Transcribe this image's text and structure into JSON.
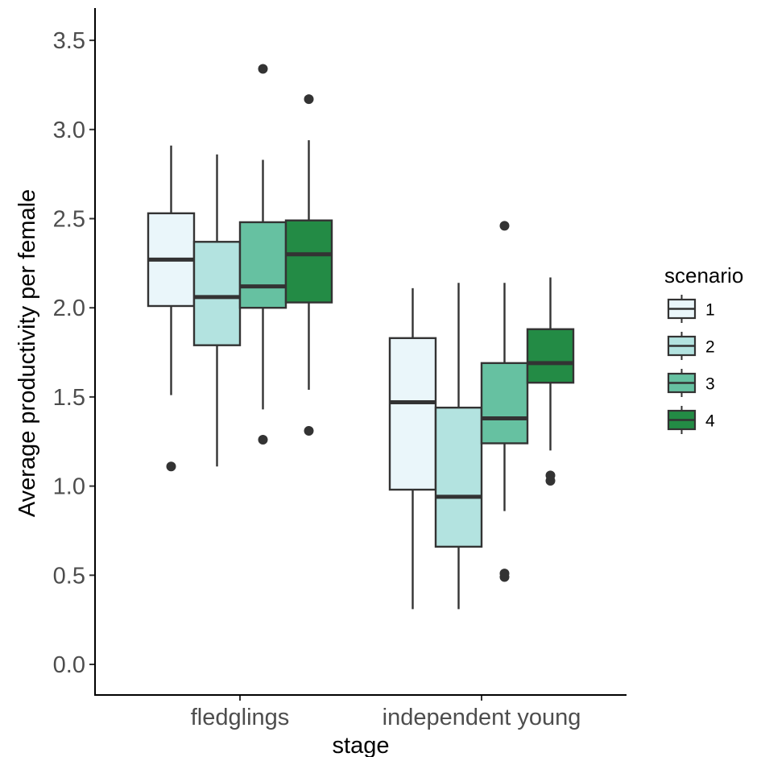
{
  "chart_data": {
    "type": "box",
    "xlabel": "stage",
    "ylabel": "Average productivity per female",
    "ylim": [
      0.0,
      3.5
    ],
    "yticks": [
      "0.0",
      "0.5",
      "1.0",
      "1.5",
      "2.0",
      "2.5",
      "3.0",
      "3.5"
    ],
    "categories": [
      "fledglings",
      "independent young"
    ],
    "grid": false,
    "legend": {
      "title": "scenario",
      "position": "right"
    },
    "series": [
      {
        "name": "1",
        "color": "#eaf6fa",
        "boxes": [
          {
            "category": "fledglings",
            "whisker_low": 1.51,
            "q1": 2.01,
            "median": 2.27,
            "q3": 2.53,
            "whisker_high": 2.91,
            "outliers": [
              1.11
            ]
          },
          {
            "category": "independent young",
            "whisker_low": 0.31,
            "q1": 0.98,
            "median": 1.47,
            "q3": 1.83,
            "whisker_high": 2.11,
            "outliers": []
          }
        ]
      },
      {
        "name": "2",
        "color": "#b3e3e0",
        "boxes": [
          {
            "category": "fledglings",
            "whisker_low": 1.11,
            "q1": 1.79,
            "median": 2.06,
            "q3": 2.37,
            "whisker_high": 2.86,
            "outliers": []
          },
          {
            "category": "independent young",
            "whisker_low": 0.31,
            "q1": 0.66,
            "median": 0.94,
            "q3": 1.44,
            "whisker_high": 2.14,
            "outliers": []
          }
        ]
      },
      {
        "name": "3",
        "color": "#66c1a1",
        "boxes": [
          {
            "category": "fledglings",
            "whisker_low": 1.43,
            "q1": 2.0,
            "median": 2.12,
            "q3": 2.48,
            "whisker_high": 2.83,
            "outliers": [
              1.26,
              3.34
            ]
          },
          {
            "category": "independent young",
            "whisker_low": 0.86,
            "q1": 1.24,
            "median": 1.38,
            "q3": 1.69,
            "whisker_high": 2.14,
            "outliers": [
              0.49,
              0.51,
              2.46
            ]
          }
        ]
      },
      {
        "name": "4",
        "color": "#238b45",
        "boxes": [
          {
            "category": "fledglings",
            "whisker_low": 1.54,
            "q1": 2.03,
            "median": 2.3,
            "q3": 2.49,
            "whisker_high": 2.94,
            "outliers": [
              1.31,
              3.17
            ]
          },
          {
            "category": "independent young",
            "whisker_low": 1.2,
            "q1": 1.58,
            "median": 1.69,
            "q3": 1.88,
            "whisker_high": 2.17,
            "outliers": [
              1.03,
              1.06
            ]
          }
        ]
      }
    ]
  }
}
